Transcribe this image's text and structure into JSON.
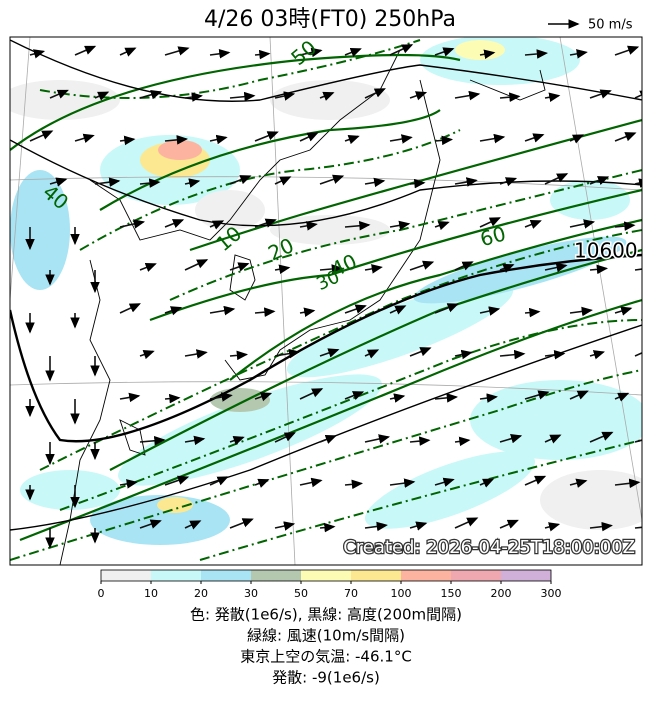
{
  "header": {
    "title": "4/26  03時(FT0)     250hPa",
    "vector_legend": "50 m/s"
  },
  "map": {
    "contour_labels": [
      "50",
      "40",
      "10",
      "20",
      "60",
      "40",
      "30",
      "10600"
    ],
    "created": "Created: 2026-04-25T18:00:00Z"
  },
  "colorbar": {
    "ticks": [
      "0",
      "10",
      "20",
      "30",
      "50",
      "70",
      "100",
      "150",
      "200",
      "300"
    ],
    "colors": [
      "#f0f0f0",
      "#c8f8f8",
      "#a8e4f4",
      "#b4c8b0",
      "#fcfcb4",
      "#fce890",
      "#fcb4a0",
      "#f0a8b0",
      "#d0b0d8"
    ]
  },
  "caption": [
    "色: 発散(1e6/s),  黒線: 高度(200m間隔)",
    "緑線: 風速(10m/s間隔)",
    "東京上空の気温: -46.1°C",
    "発散: -9(1e6/s)"
  ]
}
